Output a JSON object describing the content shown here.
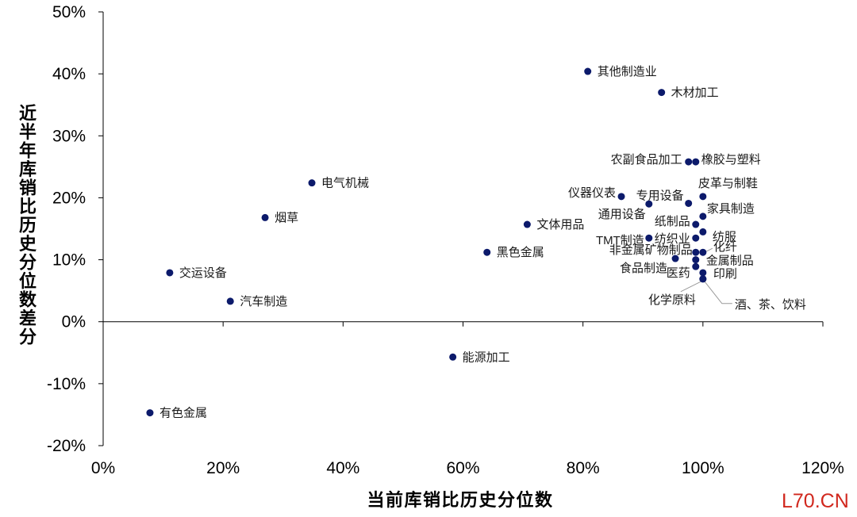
{
  "chart_data": {
    "type": "scatter",
    "xlabel": "当前库销比历史分位数",
    "ylabel": "近半年库销比历史分位数差分",
    "xlim": [
      0,
      120
    ],
    "ylim": [
      -20,
      50
    ],
    "x_ticks": [
      "0%",
      "20%",
      "40%",
      "60%",
      "80%",
      "100%",
      "120%"
    ],
    "y_ticks": [
      "50%",
      "40%",
      "30%",
      "20%",
      "10%",
      "0%",
      "-10%",
      "-20%"
    ],
    "grid": false,
    "legend": "none",
    "point_color": "#0c1a6b",
    "points": [
      {
        "label": "其他制造业",
        "x": 80.8,
        "y": 40.4
      },
      {
        "label": "木材加工",
        "x": 93.1,
        "y": 37.0
      },
      {
        "label": "农副食品加工",
        "x": 97.6,
        "y": 25.8
      },
      {
        "label": "橡胶与塑料",
        "x": 98.8,
        "y": 25.8
      },
      {
        "label": "电气机械",
        "x": 34.8,
        "y": 22.4
      },
      {
        "label": "仪器仪表",
        "x": 86.4,
        "y": 20.2
      },
      {
        "label": "皮革与制鞋",
        "x": 100.0,
        "y": 20.2
      },
      {
        "label": "专用设备",
        "x": 97.6,
        "y": 19.1
      },
      {
        "label": "通用设备",
        "x": 91.0,
        "y": 19.0
      },
      {
        "label": "家具制造",
        "x": 100.0,
        "y": 17.0
      },
      {
        "label": "烟草",
        "x": 27.0,
        "y": 16.8
      },
      {
        "label": "文体用品",
        "x": 70.7,
        "y": 15.7
      },
      {
        "label": "纸制品",
        "x": 98.8,
        "y": 15.7
      },
      {
        "label": "纺服",
        "x": 100.0,
        "y": 14.5
      },
      {
        "label": "TMT制造",
        "x": 91.0,
        "y": 13.5
      },
      {
        "label": "纺织业",
        "x": 98.8,
        "y": 13.5
      },
      {
        "label": "黑色金属",
        "x": 64.0,
        "y": 11.2
      },
      {
        "label": "化纤",
        "x": 100.0,
        "y": 11.2
      },
      {
        "label": "非金属矿物制品",
        "x": 98.8,
        "y": 11.2
      },
      {
        "label": "食品制造",
        "x": 95.4,
        "y": 10.2
      },
      {
        "label": "金属制品",
        "x": 98.8,
        "y": 10.0
      },
      {
        "label": "医药",
        "x": 98.8,
        "y": 8.9
      },
      {
        "label": "印刷",
        "x": 100.0,
        "y": 7.9
      },
      {
        "label": "化学原料",
        "x": 100.0,
        "y": 6.9
      },
      {
        "label": "酒、茶、饮料",
        "x": 100.0,
        "y": 6.9
      },
      {
        "label": "交运设备",
        "x": 11.1,
        "y": 7.9
      },
      {
        "label": "汽车制造",
        "x": 21.2,
        "y": 3.3
      },
      {
        "label": "能源加工",
        "x": 58.3,
        "y": -5.7
      },
      {
        "label": "有色金属",
        "x": 7.8,
        "y": -14.7
      }
    ]
  },
  "watermark": {
    "text": "L70.CN",
    "color": "#d1281e"
  }
}
